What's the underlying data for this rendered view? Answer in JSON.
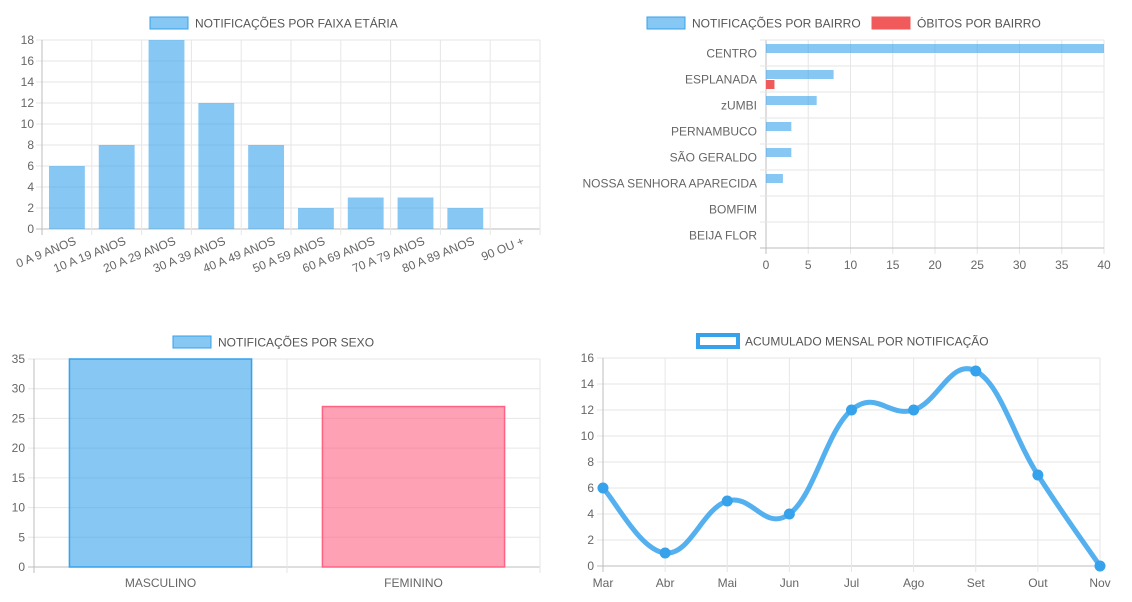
{
  "colors": {
    "blue": "#36A2EB",
    "blue_fill": "rgba(54,162,235,0.6)",
    "red": "#F05A5A",
    "pink_fill": "rgba(255,99,132,0.6)",
    "pink_stroke": "#FF6384"
  },
  "chart_data": [
    {
      "id": "age",
      "type": "bar",
      "legend": [
        {
          "name": "NOTIFICAÇÕES POR FAIXA ETÁRIA",
          "color": "blue"
        }
      ],
      "legend_position": "top-center",
      "categories": [
        "0 A 9 ANOS",
        "10 A 19 ANOS",
        "20 A 29 ANOS",
        "30 A 39 ANOS",
        "40 A 49 ANOS",
        "50 A 59 ANOS",
        "60 A 69 ANOS",
        "70 A 79 ANOS",
        "80 A 89 ANOS",
        "90  OU +"
      ],
      "values": [
        6,
        8,
        18,
        12,
        8,
        2,
        3,
        3,
        2,
        0
      ],
      "ylim": [
        0,
        18
      ],
      "yticks": [
        0,
        2,
        4,
        6,
        8,
        10,
        12,
        14,
        16,
        18
      ],
      "grid": true
    },
    {
      "id": "bairro",
      "type": "bar",
      "orientation": "horizontal",
      "legend": [
        {
          "name": "NOTIFICAÇÕES POR BAIRRO",
          "color": "blue"
        },
        {
          "name": "ÓBITOS POR BAIRRO",
          "color": "red"
        }
      ],
      "legend_position": "top-center",
      "categories": [
        "CENTRO",
        "ESPLANADA",
        "zUMBI",
        "PERNAMBUCO",
        "SÃO GERALDO",
        "NOSSA SENHORA APARECIDA",
        "BOMFIM",
        "BEIJA FLOR"
      ],
      "series": [
        {
          "name": "NOTIFICAÇÕES POR BAIRRO",
          "values": [
            40,
            8,
            6,
            3,
            3,
            2,
            0,
            0
          ]
        },
        {
          "name": "ÓBITOS POR BAIRRO",
          "values": [
            0,
            1,
            0,
            0,
            0,
            0,
            0,
            0
          ]
        }
      ],
      "xlim": [
        0,
        40
      ],
      "xticks": [
        0,
        5,
        10,
        15,
        20,
        25,
        30,
        35,
        40
      ],
      "grid": true
    },
    {
      "id": "sexo",
      "type": "bar",
      "legend": [
        {
          "name": "NOTIFICAÇÕES POR SEXO",
          "color": "blue"
        }
      ],
      "legend_position": "top-center",
      "categories": [
        "MASCULINO",
        "FEMININO"
      ],
      "values": [
        35,
        27
      ],
      "bar_colors": [
        "blue",
        "pink"
      ],
      "ylim": [
        0,
        35
      ],
      "yticks": [
        0,
        5,
        10,
        15,
        20,
        25,
        30,
        35
      ],
      "grid": true
    },
    {
      "id": "mensal",
      "type": "line",
      "legend": [
        {
          "name": "ACUMULADO MENSAL POR NOTIFICAÇÃO",
          "color": "blue"
        }
      ],
      "legend_position": "top-center",
      "categories": [
        "Mar",
        "Abr",
        "Mai",
        "Jun",
        "Jul",
        "Ago",
        "Set",
        "Out",
        "Nov"
      ],
      "values": [
        6,
        1,
        5,
        4,
        12,
        12,
        15,
        7,
        0
      ],
      "ylim": [
        0,
        16
      ],
      "yticks": [
        0,
        2,
        4,
        6,
        8,
        10,
        12,
        14,
        16
      ],
      "grid": true
    }
  ]
}
